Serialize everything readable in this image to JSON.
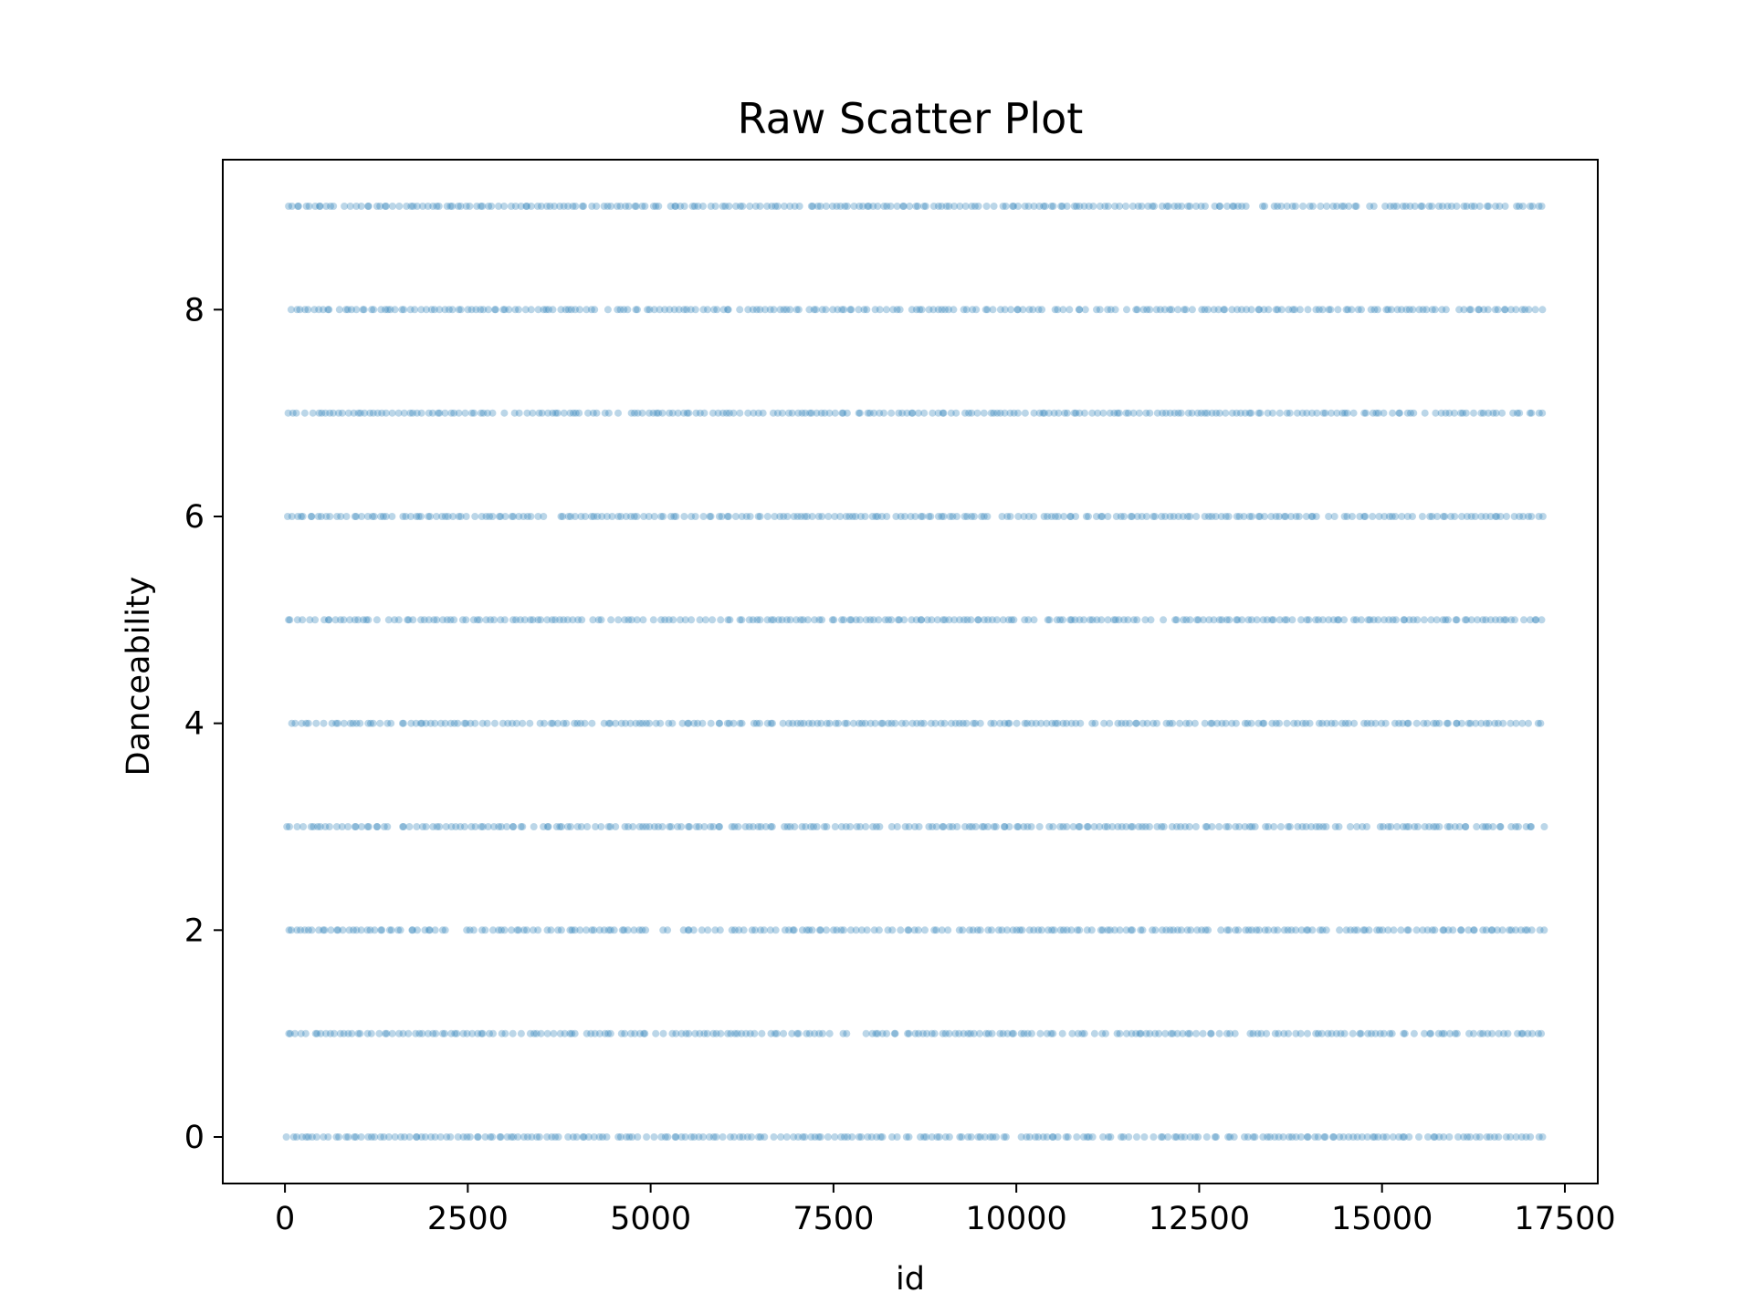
{
  "chart_data": {
    "type": "scatter",
    "title": "Raw Scatter Plot",
    "xlabel": "id",
    "ylabel": "Danceability",
    "xlim": [
      -850,
      17950
    ],
    "ylim": [
      -0.45,
      9.45
    ],
    "xticks": [
      0,
      2500,
      5000,
      7500,
      10000,
      12500,
      15000,
      17500
    ],
    "yticks": [
      0,
      2,
      4,
      6,
      8
    ],
    "x_range": [
      0,
      17167
    ],
    "y_levels": [
      0,
      1,
      2,
      3,
      4,
      5,
      6,
      7,
      8,
      9
    ],
    "point_color": "#1f77b4",
    "point_alpha": 0.3,
    "grid": false,
    "legend": "none"
  }
}
